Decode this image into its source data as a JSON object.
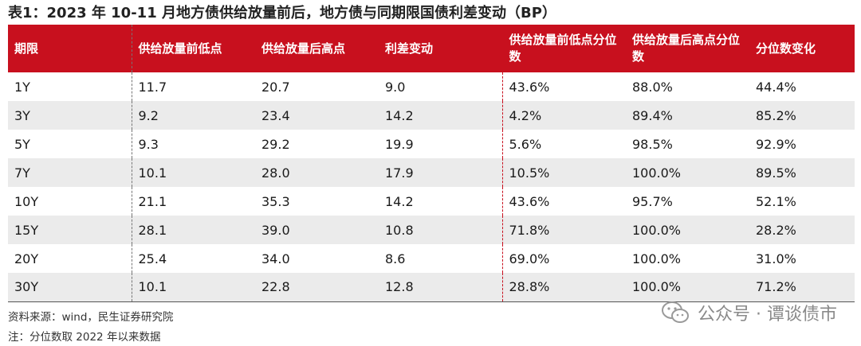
{
  "title": "表1：2023 年 10-11 月地方债供给放量前后，地方债与同期限国债利差变动（BP）",
  "table": {
    "headers": [
      "期限",
      "供给放量前低点",
      "供给放量后高点",
      "利差变动",
      "供给放量前低点分位数",
      "供给放量后高点分位数",
      "分位数变化"
    ],
    "rows": [
      [
        "1Y",
        "11.7",
        "20.7",
        "9.0",
        "43.6%",
        "88.0%",
        "44.4%"
      ],
      [
        "3Y",
        "9.2",
        "23.4",
        "14.2",
        "4.2%",
        "89.4%",
        "85.2%"
      ],
      [
        "5Y",
        "9.3",
        "29.2",
        "19.9",
        "5.6%",
        "98.5%",
        "92.9%"
      ],
      [
        "7Y",
        "10.1",
        "28.0",
        "17.9",
        "10.5%",
        "100.0%",
        "89.5%"
      ],
      [
        "10Y",
        "21.1",
        "35.3",
        "14.2",
        "43.6%",
        "95.7%",
        "52.1%"
      ],
      [
        "15Y",
        "28.1",
        "39.0",
        "10.8",
        "71.8%",
        "100.0%",
        "28.2%"
      ],
      [
        "20Y",
        "25.4",
        "34.0",
        "8.6",
        "69.0%",
        "100.0%",
        "31.0%"
      ],
      [
        "30Y",
        "10.1",
        "22.8",
        "12.8",
        "28.8%",
        "100.0%",
        "71.2%"
      ]
    ]
  },
  "source": "资料来源：wind，民生证券研究院",
  "note": "注：分位数取 2022 年以来数据",
  "watermark": {
    "text": "公众号 · 谭谈债市",
    "icon": "wechat-icon"
  }
}
